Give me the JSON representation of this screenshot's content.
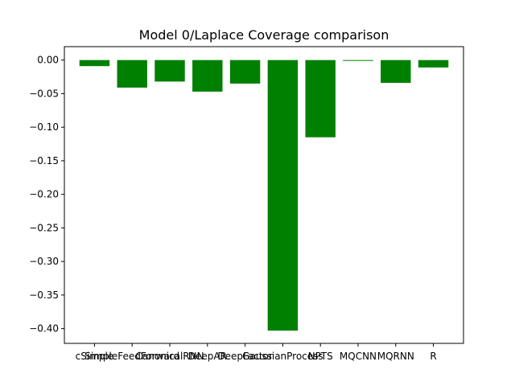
{
  "chart_data": {
    "type": "bar",
    "title": "Model 0/Laplace Coverage comparison",
    "xlabel": "",
    "ylabel": "",
    "categories": [
      "cSimple",
      "SimpleFeedForward",
      "CanonicalRNN",
      "DeepAR",
      "DeepFactor",
      "GaussianProcess",
      "NPTS",
      "MQCNN",
      "MQRNN",
      "R"
    ],
    "values": [
      -0.009,
      -0.041,
      -0.032,
      -0.047,
      -0.035,
      -0.403,
      -0.115,
      0.0,
      -0.034,
      -0.011
    ],
    "ylim": [
      -0.422,
      0.02
    ],
    "yticks": [
      0.0,
      -0.05,
      -0.1,
      -0.15,
      -0.2,
      -0.25,
      -0.3,
      -0.35,
      -0.4
    ],
    "ytick_labels": [
      "0.00",
      "−0.05",
      "−0.10",
      "−0.15",
      "−0.20",
      "−0.25",
      "−0.30",
      "−0.35",
      "−0.40"
    ],
    "bar_color": "#008000",
    "grid": false,
    "legend": "none"
  }
}
